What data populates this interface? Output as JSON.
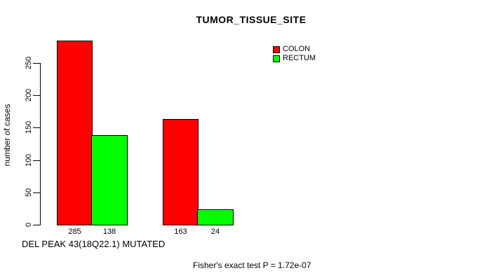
{
  "chart_data": {
    "type": "bar",
    "title": "TUMOR_TISSUE_SITE",
    "xlabel": "DEL PEAK 43(18Q22.1) MUTATED",
    "ylabel": "number of cases",
    "annotation": "Fisher's exact test P = 1.72e-07",
    "categories": [
      "",
      ""
    ],
    "series": [
      {
        "name": "COLON",
        "color": "#ff0000",
        "values": [
          285,
          163
        ]
      },
      {
        "name": "RECTUM",
        "color": "#00ff00",
        "values": [
          138,
          24
        ]
      }
    ],
    "bar_value_labels": [
      [
        285,
        138
      ],
      [
        163,
        24
      ]
    ],
    "yticks": [
      0,
      50,
      100,
      150,
      200,
      250
    ],
    "ylim": [
      0,
      250
    ],
    "grid": false,
    "legend_position": "top-right",
    "axis_color": "#000000",
    "background_color": "#ffffff"
  }
}
